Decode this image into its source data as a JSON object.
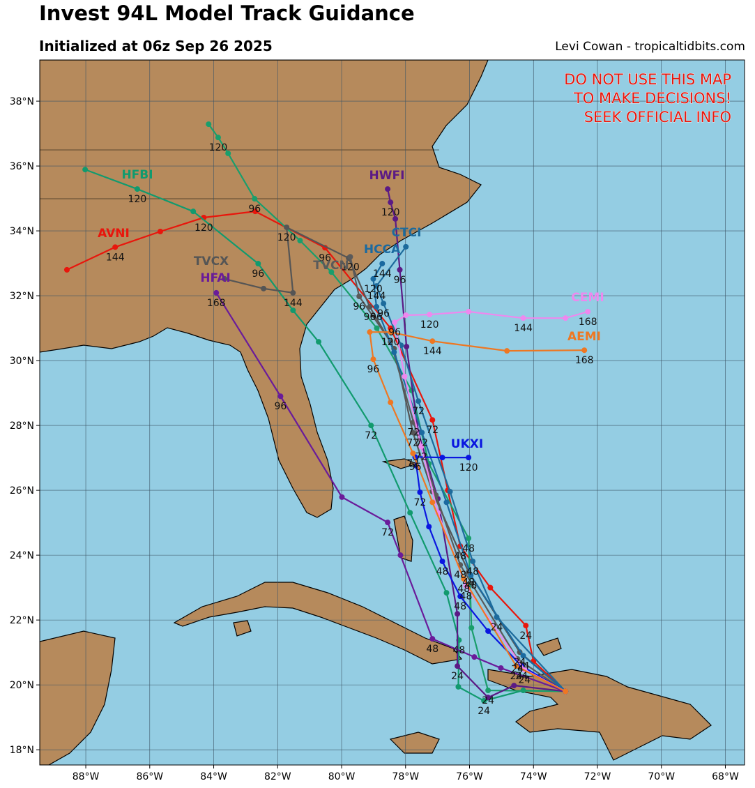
{
  "header": {
    "title": "Invest 94L Model Track Guidance",
    "subtitle": "Initialized at 06z Sep 26 2025",
    "credit": "Levi Cowan - tropicaltidbits.com"
  },
  "warning": [
    "DO NOT USE THIS MAP",
    "TO MAKE DECISIONS!",
    "SEEK OFFICIAL INFO"
  ],
  "map": {
    "xlim": [
      -89.44,
      -67.4
    ],
    "ylim": [
      17.53,
      39.27
    ],
    "xticks": [
      {
        "value": -88,
        "label": "88°W"
      },
      {
        "value": -86,
        "label": "86°W"
      },
      {
        "value": -84,
        "label": "84°W"
      },
      {
        "value": -82,
        "label": "82°W"
      },
      {
        "value": -80,
        "label": "80°W"
      },
      {
        "value": -78,
        "label": "78°W"
      },
      {
        "value": -76,
        "label": "76°W"
      },
      {
        "value": -74,
        "label": "74°W"
      },
      {
        "value": -72,
        "label": "72°W"
      },
      {
        "value": -70,
        "label": "70°W"
      },
      {
        "value": -68,
        "label": "68°W"
      }
    ],
    "yticks": [
      {
        "value": 18,
        "label": "18°N"
      },
      {
        "value": 20,
        "label": "20°N"
      },
      {
        "value": 22,
        "label": "22°N"
      },
      {
        "value": 24,
        "label": "24°N"
      },
      {
        "value": 26,
        "label": "26°N"
      },
      {
        "value": 28,
        "label": "28°N"
      },
      {
        "value": 30,
        "label": "30°N"
      },
      {
        "value": 32,
        "label": "32°N"
      },
      {
        "value": 34,
        "label": "34°N"
      },
      {
        "value": 36,
        "label": "36°N"
      },
      {
        "value": 38,
        "label": "38°N"
      }
    ],
    "grid": true,
    "tracks": [
      {
        "name": "AVNI",
        "color": "#e8160c",
        "points": [
          {
            "lon": -73.0,
            "lat": 19.8
          },
          {
            "lon": -74.0,
            "lat": 20.73
          },
          {
            "lon": -74.24,
            "lat": 21.83,
            "label": "24"
          },
          {
            "lon": -75.35,
            "lat": 23.0
          },
          {
            "lon": -76.29,
            "lat": 24.28,
            "label": "48"
          },
          {
            "lon": -76.68,
            "lat": 26.0
          },
          {
            "lon": -77.16,
            "lat": 28.17,
            "label": "72"
          },
          {
            "lon": -78.47,
            "lat": 31.0
          },
          {
            "lon": -80.52,
            "lat": 33.48,
            "label": "96"
          },
          {
            "lon": -82.7,
            "lat": 34.6
          },
          {
            "lon": -84.31,
            "lat": 34.41,
            "label": "120"
          },
          {
            "lon": -85.67,
            "lat": 33.98
          },
          {
            "lon": -87.08,
            "lat": 33.5,
            "label": "144"
          },
          {
            "lon": -88.59,
            "lat": 32.8
          }
        ]
      },
      {
        "name": "HFBI",
        "color": "#119a6e",
        "points": [
          {
            "lon": -73.0,
            "lat": 19.8
          },
          {
            "lon": -74.32,
            "lat": 19.83
          },
          {
            "lon": -75.55,
            "lat": 19.51,
            "label": "24"
          },
          {
            "lon": -76.35,
            "lat": 19.94
          },
          {
            "lon": -76.33,
            "lat": 21.38,
            "label": "48"
          },
          {
            "lon": -76.72,
            "lat": 22.84
          },
          {
            "lon": -77.86,
            "lat": 25.31
          },
          {
            "lon": -79.08,
            "lat": 28.0,
            "label": "72"
          },
          {
            "lon": -80.72,
            "lat": 30.58
          },
          {
            "lon": -81.52,
            "lat": 31.55
          },
          {
            "lon": -82.61,
            "lat": 32.99,
            "label": "96"
          },
          {
            "lon": -84.64,
            "lat": 34.6
          },
          {
            "lon": -86.39,
            "lat": 35.29,
            "label": "120"
          },
          {
            "lon": -88.02,
            "lat": 35.89
          }
        ]
      },
      {
        "color": "#1a9e6c",
        "points": [
          {
            "lon": -73.0,
            "lat": 19.8
          },
          {
            "lon": -75.42,
            "lat": 19.83,
            "label": "24"
          },
          {
            "lon": -75.94,
            "lat": 21.76
          },
          {
            "lon": -76.03,
            "lat": 24.52,
            "label": "48"
          },
          {
            "lon": -77.27,
            "lat": 26.82
          },
          {
            "lon": -77.81,
            "lat": 29.08
          },
          {
            "lon": -78.9,
            "lat": 31.0
          },
          {
            "lon": -80.32,
            "lat": 32.73
          },
          {
            "lon": -81.3,
            "lat": 33.7
          },
          {
            "lon": -82.72,
            "lat": 34.99,
            "label": "96"
          },
          {
            "lon": -83.55,
            "lat": 36.39
          },
          {
            "lon": -83.86,
            "lat": 36.88,
            "label": "120"
          },
          {
            "lon": -84.16,
            "lat": 37.29
          }
        ]
      },
      {
        "name": "HWFI",
        "color": "#5b1a85",
        "points": [
          {
            "lon": -73.0,
            "lat": 19.8
          },
          {
            "lon": -74.61,
            "lat": 19.98
          },
          {
            "lon": -75.42,
            "lat": 19.61
          },
          {
            "lon": -76.38,
            "lat": 20.58,
            "label": "24"
          },
          {
            "lon": -76.38,
            "lat": 22.19
          },
          {
            "lon": -76.99,
            "lat": 25.74
          },
          {
            "lon": -77.6,
            "lat": 27.79
          },
          {
            "lon": -77.97,
            "lat": 30.43
          },
          {
            "lon": -78.18,
            "lat": 32.8,
            "label": "96"
          },
          {
            "lon": -78.32,
            "lat": 34.37
          },
          {
            "lon": -78.47,
            "lat": 34.88,
            "label": "120"
          },
          {
            "lon": -78.56,
            "lat": 35.29
          }
        ]
      },
      {
        "name": "HFAI",
        "color": "#6a1b9a",
        "points": [
          {
            "lon": -73.0,
            "lat": 19.8
          },
          {
            "lon": -75.02,
            "lat": 20.52
          },
          {
            "lon": -75.85,
            "lat": 20.86
          },
          {
            "lon": -77.16,
            "lat": 21.42,
            "label": "48"
          },
          {
            "lon": -78.16,
            "lat": 24.0
          },
          {
            "lon": -78.56,
            "lat": 25.01,
            "label": "72"
          },
          {
            "lon": -79.99,
            "lat": 25.79
          },
          {
            "lon": -81.91,
            "lat": 28.9,
            "label": "96"
          },
          {
            "lon": -83.92,
            "lat": 32.09,
            "label": "168"
          }
        ]
      },
      {
        "name": "TVCX",
        "color": "#555555",
        "points": [
          {
            "lon": -73.0,
            "lat": 19.8
          },
          {
            "lon": -74.43,
            "lat": 21.01,
            "label": "24"
          },
          {
            "lon": -76.03,
            "lat": 23.48,
            "label": "48"
          },
          {
            "lon": -77.16,
            "lat": 25.96
          },
          {
            "lon": -77.77,
            "lat": 27.78,
            "label": "72"
          },
          {
            "lon": -78.36,
            "lat": 30.37
          },
          {
            "lon": -79.12,
            "lat": 31.66,
            "label": "96"
          },
          {
            "lon": -79.78,
            "lat": 33.16
          },
          {
            "lon": -81.72,
            "lat": 34.11,
            "label": "120"
          },
          {
            "lon": -81.52,
            "lat": 32.09,
            "label": "144"
          },
          {
            "lon": -82.44,
            "lat": 32.22
          },
          {
            "lon": -83.66,
            "lat": 32.52
          }
        ]
      },
      {
        "name": "TVCN",
        "color": "#5a5a5a",
        "points": [
          {
            "lon": -73.0,
            "lat": 19.8
          },
          {
            "lon": -74.5,
            "lat": 20.8,
            "label": "24"
          },
          {
            "lon": -76.29,
            "lat": 23.7,
            "label": "48"
          },
          {
            "lon": -77.05,
            "lat": 25.85
          },
          {
            "lon": -77.75,
            "lat": 28.1,
            "label": "72"
          },
          {
            "lon": -78.47,
            "lat": 30.58
          },
          {
            "lon": -79.45,
            "lat": 31.98,
            "label": "96"
          },
          {
            "lon": -79.73,
            "lat": 33.2,
            "label": "120"
          }
        ]
      },
      {
        "name": "HCCA",
        "color": "#1a6aa0",
        "points": [
          {
            "lon": -73.0,
            "lat": 19.8
          },
          {
            "lon": -74.32,
            "lat": 20.9,
            "label": "24"
          },
          {
            "lon": -75.96,
            "lat": 23.38,
            "label": "48"
          },
          {
            "lon": -76.72,
            "lat": 25.63
          },
          {
            "lon": -77.49,
            "lat": 27.78,
            "label": "72"
          },
          {
            "lon": -78.36,
            "lat": 30.26
          },
          {
            "lon": -78.91,
            "lat": 31.66,
            "label": "96"
          },
          {
            "lon": -79.01,
            "lat": 32.52,
            "label": "120"
          },
          {
            "lon": -78.73,
            "lat": 32.99,
            "label": "144"
          }
        ]
      },
      {
        "name": "CTCI",
        "color": "#1d6b9c",
        "points": [
          {
            "lon": -73.0,
            "lat": 19.8
          },
          {
            "lon": -75.15,
            "lat": 22.09,
            "label": "24"
          },
          {
            "lon": -75.9,
            "lat": 23.81,
            "label": "48"
          },
          {
            "lon": -76.61,
            "lat": 25.96
          },
          {
            "lon": -77.6,
            "lat": 28.75,
            "label": "72"
          },
          {
            "lon": -78.14,
            "lat": 30.47
          },
          {
            "lon": -78.69,
            "lat": 31.76,
            "label": "96"
          },
          {
            "lon": -78.91,
            "lat": 32.3,
            "label": "144"
          },
          {
            "lon": -77.99,
            "lat": 33.51
          }
        ]
      },
      {
        "name": "UKXI",
        "color": "#0a16e0",
        "points": [
          {
            "lon": -73.0,
            "lat": 19.8
          },
          {
            "lon": -74.37,
            "lat": 20.58,
            "label": "24"
          },
          {
            "lon": -75.42,
            "lat": 21.66
          },
          {
            "lon": -76.29,
            "lat": 22.73,
            "label": "48"
          },
          {
            "lon": -76.85,
            "lat": 23.81,
            "label": "48"
          },
          {
            "lon": -77.27,
            "lat": 24.88
          },
          {
            "lon": -77.55,
            "lat": 25.94,
            "label": "72"
          },
          {
            "lon": -77.66,
            "lat": 26.75
          },
          {
            "lon": -77.7,
            "lat": 27.03,
            "label": "96"
          },
          {
            "lon": -76.85,
            "lat": 27.01
          },
          {
            "lon": -76.03,
            "lat": 27.01,
            "label": "120"
          }
        ]
      },
      {
        "name": "CEMI",
        "color": "#ee88ee",
        "points": [
          {
            "lon": -73.0,
            "lat": 19.8
          },
          {
            "lon": -74.28,
            "lat": 20.47,
            "label": "24"
          },
          {
            "lon": -76.11,
            "lat": 23.05,
            "label": "48"
          },
          {
            "lon": -76.99,
            "lat": 25.31
          },
          {
            "lon": -77.51,
            "lat": 27.35,
            "label": "72"
          },
          {
            "lon": -78.03,
            "lat": 29.51
          },
          {
            "lon": -78.34,
            "lat": 31.18,
            "label": "96"
          },
          {
            "lon": -77.99,
            "lat": 31.4
          },
          {
            "lon": -77.25,
            "lat": 31.42,
            "label": "120"
          },
          {
            "lon": -76.03,
            "lat": 31.51
          },
          {
            "lon": -74.32,
            "lat": 31.31,
            "label": "144"
          },
          {
            "lon": -73.0,
            "lat": 31.31
          },
          {
            "lon": -72.3,
            "lat": 31.51,
            "label": "168"
          }
        ]
      },
      {
        "name": "AEMI",
        "color": "#ee7722",
        "points": [
          {
            "lon": -73.0,
            "lat": 19.8
          },
          {
            "lon": -74.54,
            "lat": 20.58,
            "label": "24"
          },
          {
            "lon": -76.18,
            "lat": 23.27,
            "label": "48"
          },
          {
            "lon": -77.16,
            "lat": 25.63
          },
          {
            "lon": -77.77,
            "lat": 27.14,
            "label": "72"
          },
          {
            "lon": -78.47,
            "lat": 28.71
          },
          {
            "lon": -79.01,
            "lat": 30.04,
            "label": "96"
          },
          {
            "lon": -79.12,
            "lat": 30.88
          },
          {
            "lon": -78.47,
            "lat": 30.88,
            "label": "120"
          },
          {
            "lon": -77.16,
            "lat": 30.6,
            "label": "144"
          },
          {
            "lon": -74.83,
            "lat": 30.3
          },
          {
            "lon": -72.41,
            "lat": 30.32,
            "label": "168"
          }
        ]
      }
    ]
  }
}
